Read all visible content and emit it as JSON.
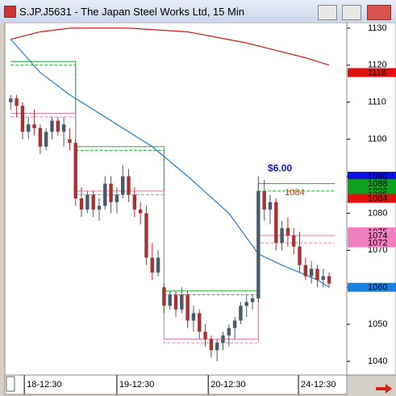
{
  "window_title": "S.JP.J5631 - The Japan Steel Works Ltd, 15 Min",
  "chart_data": {
    "type": "candlestick",
    "x": [
      0,
      1,
      2,
      3,
      4,
      5,
      6,
      7,
      8,
      9,
      10,
      11,
      12,
      13,
      14,
      15,
      16,
      17,
      18,
      19,
      20,
      21,
      22,
      23,
      24,
      25,
      26,
      27,
      28,
      29,
      30,
      31,
      32,
      33,
      34,
      35,
      36,
      37,
      38,
      39,
      40,
      41,
      42,
      43,
      44,
      45,
      46,
      47,
      48,
      49,
      50,
      51,
      52,
      53,
      54
    ],
    "open": [
      1110,
      1111,
      1109,
      1102,
      1104,
      1103,
      1098,
      1102,
      1105,
      1102,
      1100,
      1099,
      1084,
      1081,
      1085,
      1081,
      1082,
      1088,
      1083,
      1085,
      1090,
      1085,
      1081,
      1080,
      1068,
      1064,
      1060,
      1055,
      1058,
      1054,
      1058,
      1051,
      1053,
      1048,
      1046,
      1043,
      1045,
      1047,
      1049,
      1051,
      1055,
      1056,
      1057,
      1086,
      1081,
      1083,
      1072,
      1076,
      1074,
      1071,
      1066,
      1063,
      1065,
      1062,
      1063
    ],
    "high": [
      1112,
      1112,
      1110,
      1106,
      1108,
      1104,
      1103,
      1106,
      1106,
      1106,
      1103,
      1100,
      1087,
      1086,
      1086,
      1084,
      1090,
      1090,
      1087,
      1093,
      1092,
      1087,
      1083,
      1082,
      1072,
      1070,
      1061,
      1059,
      1059,
      1060,
      1059,
      1055,
      1054,
      1050,
      1047,
      1046,
      1048,
      1050,
      1052,
      1056,
      1058,
      1058,
      1090,
      1089,
      1085,
      1084,
      1078,
      1079,
      1076,
      1075,
      1068,
      1067,
      1066,
      1065,
      1064
    ],
    "low": [
      1108,
      1106,
      1100,
      1100,
      1101,
      1096,
      1097,
      1100,
      1101,
      1098,
      1097,
      1082,
      1079,
      1080,
      1079,
      1078,
      1081,
      1080,
      1080,
      1084,
      1083,
      1079,
      1077,
      1066,
      1062,
      1063,
      1053,
      1054,
      1052,
      1053,
      1049,
      1048,
      1046,
      1044,
      1041,
      1040,
      1043,
      1044,
      1046,
      1050,
      1052,
      1054,
      1056,
      1078,
      1077,
      1070,
      1070,
      1071,
      1069,
      1064,
      1062,
      1061,
      1060,
      1060,
      1060
    ],
    "close": [
      1111,
      1109,
      1102,
      1104,
      1103,
      1098,
      1102,
      1105,
      1102,
      1104,
      1099,
      1084,
      1081,
      1085,
      1081,
      1082,
      1088,
      1083,
      1085,
      1090,
      1085,
      1081,
      1080,
      1068,
      1064,
      1068,
      1055,
      1058,
      1054,
      1058,
      1051,
      1053,
      1048,
      1046,
      1043,
      1045,
      1047,
      1049,
      1051,
      1055,
      1056,
      1057,
      1086,
      1081,
      1083,
      1072,
      1076,
      1074,
      1071,
      1066,
      1063,
      1065,
      1062,
      1063,
      1061
    ],
    "up_color": "#4a5a6a",
    "down_color": "#a83232",
    "lines": [
      {
        "color": "#d01818",
        "x": [
          0,
          5,
          10,
          20,
          30,
          40,
          45,
          50,
          54
        ],
        "values": [
          1127,
          1129,
          1130,
          1130,
          1129,
          1126,
          1124,
          1122,
          1120
        ]
      },
      {
        "color": "#1e7fd8",
        "x": [
          0,
          5,
          10,
          17,
          24,
          30,
          37,
          42,
          46,
          52,
          54
        ],
        "values": [
          1127,
          1118,
          1112,
          1105,
          1098,
          1090,
          1080,
          1069,
          1066,
          1062,
          1060
        ]
      }
    ],
    "levels": [
      {
        "color": "#22aa33",
        "x": [
          0,
          11,
          11,
          26,
          26,
          42,
          42,
          55
        ],
        "values": [
          1121,
          1121,
          1098,
          1098,
          1059,
          1059,
          1088,
          1088
        ]
      },
      {
        "color": "#22aa33",
        "x": [
          0,
          11,
          11,
          26,
          26,
          42,
          42,
          55
        ],
        "values": [
          1120,
          1120,
          1097,
          1097,
          1058,
          1058,
          1086,
          1086
        ]
      },
      {
        "color": "#e080b0",
        "x": [
          0,
          11,
          11,
          26,
          26,
          42,
          42,
          55
        ],
        "values": [
          1107,
          1107,
          1086,
          1086,
          1046,
          1046,
          1074,
          1074
        ]
      },
      {
        "color": "#e080b0",
        "x": [
          0,
          11,
          11,
          26,
          26,
          42,
          42,
          55
        ],
        "values": [
          1106,
          1106,
          1085,
          1085,
          1045,
          1045,
          1072,
          1072
        ]
      }
    ],
    "annotations": [
      {
        "text": "$6.00",
        "color": "#1010d0",
        "x": 43.6,
        "y": 1092
      },
      {
        "text": "1084",
        "color": "#b04010",
        "x": 46.5,
        "y": 1085.5
      }
    ],
    "price_labels": [
      {
        "value": 1118,
        "color": "#e01010"
      },
      {
        "value": 1090,
        "color": "#1010e0"
      },
      {
        "value": 1088,
        "color": "#10a020"
      },
      {
        "value": 1086,
        "color": "#10a020"
      },
      {
        "value": 1085,
        "color": "#10a020"
      },
      {
        "value": 1084,
        "color": "#e01010"
      },
      {
        "value": 1075,
        "color": "#f080c0"
      },
      {
        "value": 1074,
        "color": "#f080c0"
      },
      {
        "value": 1072,
        "color": "#f080c0"
      },
      {
        "value": 1060,
        "color": "#1880e0"
      }
    ],
    "xlim": [
      -1,
      57
    ],
    "ylim": [
      1036.3,
      1131.5
    ],
    "xticks": [
      {
        "value": 2.3,
        "label": "18-12:30"
      },
      {
        "value": 18,
        "label": "19-12:30"
      },
      {
        "value": 33.5,
        "label": "20-12:30"
      },
      {
        "value": 48.8,
        "label": "24-12:30"
      }
    ],
    "yticks": [
      1040,
      1050,
      1060,
      1070,
      1080,
      1090,
      1100,
      1110,
      1120,
      1130
    ]
  }
}
